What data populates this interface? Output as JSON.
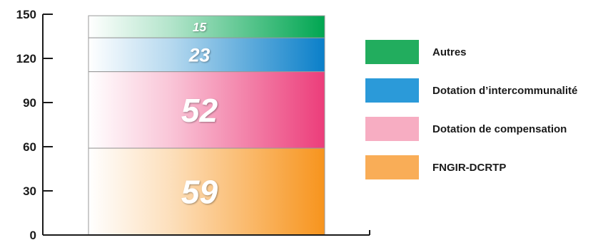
{
  "chart_data": {
    "type": "bar",
    "stacked": true,
    "categories": [
      ""
    ],
    "series": [
      {
        "name": "FNGIR-DCRTP",
        "values": [
          59
        ],
        "color": "#f7941d"
      },
      {
        "name": "Dotation de compensation",
        "values": [
          52
        ],
        "color": "#ec3d7a"
      },
      {
        "name": "Dotation d’intercommunalité",
        "values": [
          23
        ],
        "color": "#0a7fc9"
      },
      {
        "name": "Autres",
        "values": [
          15
        ],
        "color": "#00a651"
      }
    ],
    "legend": {
      "placement": "right",
      "order": [
        "Autres",
        "Dotation d’intercommunalité",
        "Dotation de compensation",
        "FNGIR-DCRTP"
      ],
      "swatch_colors": {
        "Autres": "#22ad5e",
        "Dotation d’intercommunalité": "#2b9ad9",
        "Dotation de compensation": "#f7adc2",
        "FNGIR-DCRTP": "#f9ad57"
      }
    },
    "y_ticks": [
      0,
      30,
      60,
      90,
      120,
      150
    ],
    "ylim": [
      0,
      150
    ],
    "grid": false,
    "title": "",
    "xlabel": "",
    "ylabel": ""
  }
}
